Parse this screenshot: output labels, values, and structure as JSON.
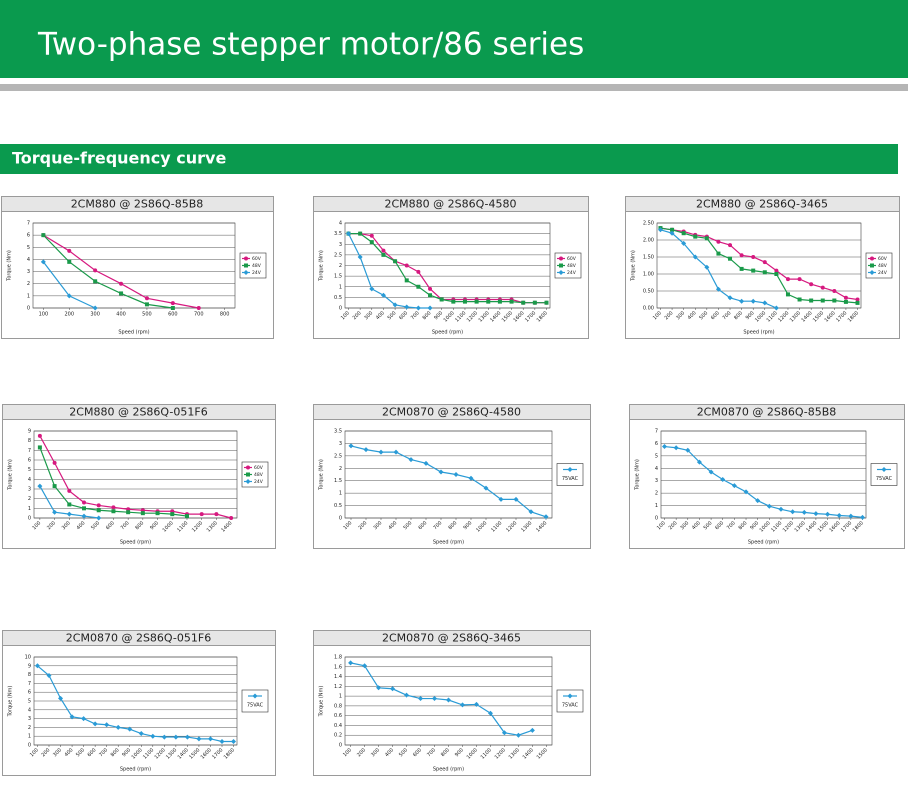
{
  "header": {
    "title": "Two-phase stepper motor/86 series"
  },
  "section": {
    "title": "Torque-frequency curve"
  },
  "chart_data": [
    {
      "type": "line",
      "title": "2CM880 @ 2S86Q-85B8",
      "x_label": "Speed (rpm)",
      "y_label": "Torque (Nm)",
      "x": [
        100,
        200,
        300,
        400,
        500,
        600,
        700
      ],
      "series": [
        {
          "name": "60V",
          "color": "#d6197f",
          "values": [
            6,
            4.7,
            3.1,
            2,
            0.8,
            0.4,
            0
          ]
        },
        {
          "name": "48V",
          "color": "#1a9a4a",
          "values": [
            6,
            3.8,
            2.2,
            1.2,
            0.3,
            0,
            null
          ]
        },
        {
          "name": "24V",
          "color": "#2a9bd6",
          "values": [
            3.8,
            1,
            0,
            null,
            null,
            null,
            null
          ]
        }
      ],
      "xlim": [
        60,
        840
      ],
      "xticks": [
        100,
        200,
        300,
        400,
        500,
        600,
        700,
        800
      ],
      "ylim": [
        0,
        7
      ],
      "yticks": [
        0,
        1,
        2,
        3,
        4,
        5,
        6,
        7
      ],
      "grid": true
    },
    {
      "type": "line",
      "title": "2CM880 @ 2S86Q-4580",
      "x_label": "Speed (rpm)",
      "y_label": "Torque (Nm)",
      "x": [
        100,
        200,
        300,
        400,
        500,
        600,
        700,
        800,
        900,
        1000,
        1100,
        1200,
        1300,
        1400,
        1500,
        1600,
        1700,
        1800
      ],
      "series": [
        {
          "name": "60V",
          "color": "#d6197f",
          "values": [
            3.5,
            3.5,
            3.4,
            2.7,
            2.2,
            2,
            1.7,
            0.9,
            0.4,
            0.4,
            0.4,
            0.4,
            0.4,
            0.4,
            0.4,
            0.25,
            0.25,
            0.25
          ]
        },
        {
          "name": "48V",
          "color": "#1a9a4a",
          "values": [
            3.5,
            3.5,
            3.1,
            2.5,
            2.2,
            1.3,
            1,
            0.6,
            0.4,
            0.3,
            0.3,
            0.3,
            0.3,
            0.3,
            0.3,
            0.25,
            0.25,
            0.25
          ]
        },
        {
          "name": "24V",
          "color": "#2a9bd6",
          "values": [
            3.5,
            2.4,
            0.9,
            0.6,
            0.15,
            0.05,
            0,
            0,
            null,
            null,
            null,
            null,
            null,
            null,
            null,
            null,
            null,
            null
          ]
        }
      ],
      "xlim": [
        70,
        1830
      ],
      "xticks": [
        100,
        200,
        300,
        400,
        500,
        600,
        700,
        800,
        900,
        1000,
        1100,
        1200,
        1300,
        1400,
        1500,
        1600,
        1700,
        1800
      ],
      "ylim": [
        0,
        4
      ],
      "yticks": [
        0,
        0.5,
        1,
        1.5,
        2,
        2.5,
        3,
        3.5,
        4
      ],
      "grid": true
    },
    {
      "type": "line",
      "title": "2CM880 @ 2S86Q-3465",
      "x_label": "Speed (rpm)",
      "y_label": "Torque (Nm)",
      "x": [
        100,
        200,
        300,
        400,
        500,
        600,
        700,
        800,
        900,
        1000,
        1100,
        1200,
        1300,
        1400,
        1500,
        1600,
        1700,
        1800
      ],
      "series": [
        {
          "name": "60V",
          "color": "#d6197f",
          "values": [
            2.35,
            2.3,
            2.25,
            2.15,
            2.1,
            1.95,
            1.85,
            1.55,
            1.5,
            1.35,
            1.1,
            0.85,
            0.85,
            0.7,
            0.6,
            0.5,
            0.3,
            0.25
          ]
        },
        {
          "name": "48V",
          "color": "#1a9a4a",
          "values": [
            2.35,
            2.3,
            2.2,
            2.1,
            2.05,
            1.6,
            1.45,
            1.15,
            1.1,
            1.05,
            1,
            0.4,
            0.25,
            0.22,
            0.22,
            0.22,
            0.18,
            0.15
          ]
        },
        {
          "name": "24V",
          "color": "#2a9bd6",
          "values": [
            2.3,
            2.2,
            1.9,
            1.5,
            1.2,
            0.55,
            0.3,
            0.2,
            0.2,
            0.15,
            0,
            null,
            null,
            null,
            null,
            null,
            null,
            null
          ]
        }
      ],
      "xlim": [
        70,
        1830
      ],
      "xticks": [
        100,
        200,
        300,
        400,
        500,
        600,
        700,
        800,
        900,
        1000,
        1100,
        1200,
        1300,
        1400,
        1500,
        1600,
        1700,
        1800
      ],
      "ylim": [
        0,
        2.5
      ],
      "yticks": [
        {
          "value": 0,
          "label": "0.00"
        },
        {
          "value": 0.5,
          "label": "0.50"
        },
        {
          "value": 1,
          "label": "1.00"
        },
        {
          "value": 1.5,
          "label": "1.50"
        },
        {
          "value": 2,
          "label": "2.00"
        },
        {
          "value": 2.5,
          "label": "2.50"
        }
      ],
      "grid": true
    },
    {
      "type": "line",
      "title": "2CM880 @ 2S86Q-051F6",
      "x_label": "Speed (rpm)",
      "y_label": "Torque (Nm)",
      "x": [
        100,
        200,
        300,
        400,
        500,
        600,
        700,
        800,
        900,
        1000,
        1100,
        1200,
        1300,
        1400
      ],
      "series": [
        {
          "name": "60V",
          "color": "#d6197f",
          "values": [
            8.5,
            5.7,
            2.8,
            1.6,
            1.3,
            1.1,
            0.9,
            0.8,
            0.7,
            0.7,
            0.4,
            0.4,
            0.4,
            0
          ]
        },
        {
          "name": "48V",
          "color": "#1a9a4a",
          "values": [
            7.3,
            3.3,
            1.4,
            1,
            0.8,
            0.7,
            0.6,
            0.5,
            0.5,
            0.4,
            0.2,
            null,
            null,
            null
          ]
        },
        {
          "name": "24V",
          "color": "#2a9bd6",
          "values": [
            3.3,
            0.6,
            0.4,
            0.2,
            0,
            null,
            null,
            null,
            null,
            null,
            null,
            null,
            null,
            null
          ]
        }
      ],
      "xlim": [
        60,
        1440
      ],
      "xticks": [
        100,
        200,
        300,
        400,
        500,
        600,
        700,
        800,
        900,
        1000,
        1100,
        1200,
        1300,
        1400
      ],
      "ylim": [
        0,
        9
      ],
      "yticks": [
        0,
        1,
        2,
        3,
        4,
        5,
        6,
        7,
        8,
        9
      ],
      "grid": true
    },
    {
      "type": "line",
      "title": "2CM0870 @ 2S86Q-4580",
      "x_label": "Speed (rpm)",
      "y_label": "Torque (Nm)",
      "x": [
        100,
        200,
        300,
        400,
        500,
        600,
        700,
        800,
        900,
        1000,
        1100,
        1200,
        1300,
        1400
      ],
      "series": [
        {
          "name": "75VAC",
          "color": "#2a9bd6",
          "values": [
            2.9,
            2.75,
            2.65,
            2.65,
            2.35,
            2.2,
            1.85,
            1.75,
            1.6,
            1.2,
            0.75,
            0.75,
            0.25,
            0.05
          ]
        }
      ],
      "xlim": [
        60,
        1440
      ],
      "xticks": [
        100,
        200,
        300,
        400,
        500,
        600,
        700,
        800,
        900,
        1000,
        1100,
        1200,
        1300,
        1400
      ],
      "ylim": [
        0,
        3.5
      ],
      "yticks": [
        0,
        0.5,
        1,
        1.5,
        2,
        2.5,
        3,
        3.5
      ],
      "grid": true
    },
    {
      "type": "line",
      "title": "2CM0870 @ 2S86Q-85B8",
      "x_label": "Speed (rpm)",
      "y_label": "Torque (Nm)",
      "x": [
        100,
        200,
        300,
        400,
        500,
        600,
        700,
        800,
        900,
        1000,
        1100,
        1200,
        1300,
        1400,
        1500,
        1600,
        1700,
        1800
      ],
      "series": [
        {
          "name": "75VAC",
          "color": "#2a9bd6",
          "values": [
            5.75,
            5.65,
            5.45,
            4.5,
            3.7,
            3.1,
            2.6,
            2.1,
            1.4,
            0.95,
            0.7,
            0.5,
            0.45,
            0.35,
            0.3,
            0.2,
            0.15,
            0.05
          ]
        }
      ],
      "xlim": [
        70,
        1830
      ],
      "xticks": [
        100,
        200,
        300,
        400,
        500,
        600,
        700,
        800,
        900,
        1000,
        1100,
        1200,
        1300,
        1400,
        1500,
        1600,
        1700,
        1800
      ],
      "ylim": [
        0,
        7
      ],
      "yticks": [
        0,
        1,
        2,
        3,
        4,
        5,
        6,
        7
      ],
      "grid": true
    },
    {
      "type": "line",
      "title": "2CM0870 @ 2S86Q-051F6",
      "x_label": "Speed (rpm)",
      "y_label": "Torque (Nm)",
      "x": [
        100,
        200,
        300,
        400,
        500,
        600,
        700,
        800,
        900,
        1000,
        1100,
        1200,
        1300,
        1400,
        1500,
        1600,
        1700,
        1800
      ],
      "series": [
        {
          "name": "75VAC",
          "color": "#2a9bd6",
          "values": [
            9,
            7.9,
            5.3,
            3.2,
            3,
            2.4,
            2.3,
            2,
            1.8,
            1.3,
            1,
            0.9,
            0.9,
            0.9,
            0.7,
            0.7,
            0.4,
            0.4
          ]
        }
      ],
      "xlim": [
        70,
        1830
      ],
      "xticks": [
        100,
        200,
        300,
        400,
        500,
        600,
        700,
        800,
        900,
        1000,
        1100,
        1200,
        1300,
        1400,
        1500,
        1600,
        1700,
        1800
      ],
      "ylim": [
        0,
        10
      ],
      "yticks": [
        0,
        1,
        2,
        3,
        4,
        5,
        6,
        7,
        8,
        9,
        10
      ],
      "grid": true
    },
    {
      "type": "line",
      "title": "2CM0870 @ 2S86Q-3465",
      "x_label": "Speed (rpm)",
      "y_label": "Torque (Nm)",
      "x": [
        100,
        200,
        300,
        400,
        500,
        600,
        700,
        800,
        900,
        1000,
        1100,
        1200,
        1300,
        1400,
        1500
      ],
      "series": [
        {
          "name": "75VAC",
          "color": "#2a9bd6",
          "values": [
            1.68,
            1.62,
            1.17,
            1.15,
            1.02,
            0.95,
            0.95,
            0.92,
            0.82,
            0.83,
            0.65,
            0.25,
            0.2,
            0.3,
            null
          ]
        }
      ],
      "xlim": [
        60,
        1540
      ],
      "xticks": [
        100,
        200,
        300,
        400,
        500,
        600,
        700,
        800,
        900,
        1000,
        1100,
        1200,
        1300,
        1400,
        1500
      ],
      "ylim": [
        0,
        1.8
      ],
      "yticks": [
        0,
        0.2,
        0.4,
        0.6,
        0.8,
        1,
        1.2,
        1.4,
        1.6,
        1.8
      ],
      "grid": true
    }
  ]
}
